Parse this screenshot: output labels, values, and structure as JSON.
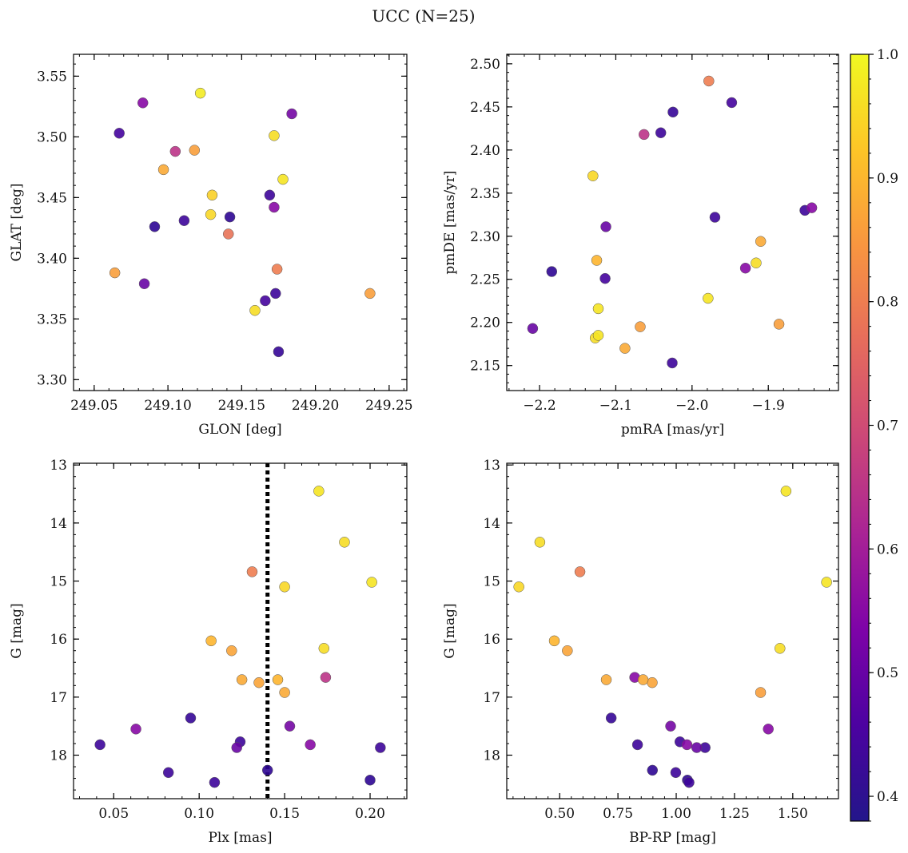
{
  "figure_title": "UCC (N=25)",
  "chart_data": [
    {
      "type": "scatter",
      "id": "sky",
      "xlabel": "GLON [deg]",
      "ylabel": "GLAT [deg]",
      "xlim": [
        249.036,
        249.262
      ],
      "ylim": [
        3.291,
        3.568
      ],
      "xticks": [
        249.05,
        249.1,
        249.15,
        249.2,
        249.25
      ],
      "xtick_labels": [
        "249.05",
        "249.10",
        "249.15",
        "249.20",
        "249.25"
      ],
      "yticks": [
        3.3,
        3.35,
        3.4,
        3.45,
        3.5,
        3.55
      ],
      "ytick_labels": [
        "3.30",
        "3.35",
        "3.40",
        "3.45",
        "3.50",
        "3.55"
      ],
      "x": [
        249.122,
        249.083,
        249.184,
        249.067,
        249.105,
        249.118,
        249.172,
        249.097,
        249.178,
        249.13,
        249.169,
        249.129,
        249.142,
        249.111,
        249.172,
        249.091,
        249.141,
        249.064,
        249.174,
        249.084,
        249.237,
        249.173,
        249.166,
        249.159,
        249.175
      ],
      "y": [
        3.536,
        3.528,
        3.519,
        3.503,
        3.488,
        3.489,
        3.501,
        3.473,
        3.465,
        3.452,
        3.452,
        3.436,
        3.434,
        3.431,
        3.442,
        3.426,
        3.42,
        3.388,
        3.391,
        3.379,
        3.371,
        3.371,
        3.365,
        3.357,
        3.323
      ],
      "c": [
        0.98,
        0.55,
        0.52,
        0.45,
        0.65,
        0.86,
        0.96,
        0.88,
        0.97,
        0.94,
        0.44,
        0.95,
        0.42,
        0.44,
        0.55,
        0.42,
        0.78,
        0.86,
        0.8,
        0.5,
        0.86,
        0.44,
        0.45,
        0.96,
        0.43
      ]
    },
    {
      "type": "scatter",
      "id": "pm",
      "xlabel": "pmRA [mas/yr]",
      "ylabel": "pmDE [mas/yr]",
      "xlim": [
        -2.243,
        -1.808
      ],
      "ylim": [
        2.121,
        2.511
      ],
      "xticks": [
        -2.2,
        -2.1,
        -2.0,
        -1.9
      ],
      "xtick_labels": [
        "−2.2",
        "−2.1",
        "−2.0",
        "−1.9"
      ],
      "yticks": [
        2.15,
        2.2,
        2.25,
        2.3,
        2.35,
        2.4,
        2.45,
        2.5
      ],
      "ytick_labels": [
        "2.15",
        "2.20",
        "2.25",
        "2.30",
        "2.35",
        "2.40",
        "2.45",
        "2.50"
      ],
      "x": [
        -1.978,
        -1.948,
        -2.025,
        -2.041,
        -2.063,
        -2.13,
        -1.843,
        -1.852,
        -1.97,
        -2.113,
        -1.91,
        -2.125,
        -1.916,
        -1.93,
        -2.184,
        -2.114,
        -1.979,
        -2.123,
        -2.209,
        -1.886,
        -2.068,
        -2.123,
        -2.127,
        -2.088,
        -2.026
      ],
      "y": [
        2.48,
        2.455,
        2.444,
        2.42,
        2.418,
        2.37,
        2.333,
        2.33,
        2.322,
        2.311,
        2.294,
        2.272,
        2.269,
        2.263,
        2.259,
        2.251,
        2.228,
        2.216,
        2.193,
        2.198,
        2.195,
        2.185,
        2.182,
        2.17,
        2.153
      ],
      "c": [
        0.8,
        0.45,
        0.43,
        0.44,
        0.65,
        0.95,
        0.55,
        0.44,
        0.44,
        0.5,
        0.88,
        0.9,
        0.96,
        0.55,
        0.42,
        0.45,
        0.97,
        0.97,
        0.5,
        0.86,
        0.86,
        0.97,
        0.96,
        0.88,
        0.44
      ]
    },
    {
      "type": "scatter",
      "id": "cmd_plx",
      "xlabel": "Plx [mas]",
      "ylabel": "G [mag]",
      "xlim": [
        0.0265,
        0.2215
      ],
      "ylim": [
        18.75,
        12.97
      ],
      "y_inverted": true,
      "xticks": [
        0.05,
        0.1,
        0.15,
        0.2
      ],
      "xtick_labels": [
        "0.05",
        "0.10",
        "0.15",
        "0.20"
      ],
      "yticks": [
        13,
        14,
        15,
        16,
        17,
        18
      ],
      "ytick_labels": [
        "13",
        "14",
        "15",
        "16",
        "17",
        "18"
      ],
      "vline_x": 0.14,
      "x": [
        0.17,
        0.185,
        0.131,
        0.201,
        0.15,
        0.107,
        0.119,
        0.173,
        0.174,
        0.125,
        0.135,
        0.146,
        0.15,
        0.095,
        0.063,
        0.153,
        0.042,
        0.124,
        0.122,
        0.165,
        0.206,
        0.14,
        0.082,
        0.2,
        0.109
      ],
      "y": [
        13.45,
        14.33,
        14.84,
        15.02,
        15.1,
        16.03,
        16.2,
        16.16,
        16.66,
        16.7,
        16.75,
        16.7,
        16.92,
        17.36,
        17.55,
        17.5,
        17.82,
        17.77,
        17.87,
        17.82,
        17.87,
        18.26,
        18.3,
        18.43,
        18.47
      ],
      "c": [
        0.97,
        0.96,
        0.8,
        0.97,
        0.95,
        0.9,
        0.87,
        0.96,
        0.65,
        0.88,
        0.87,
        0.9,
        0.88,
        0.43,
        0.55,
        0.52,
        0.44,
        0.44,
        0.5,
        0.55,
        0.44,
        0.42,
        0.44,
        0.42,
        0.44
      ]
    },
    {
      "type": "scatter",
      "id": "cmd_color",
      "xlabel": "BP-RP [mag]",
      "ylabel": "G [mag]",
      "xlim": [
        0.273,
        1.696
      ],
      "ylim": [
        18.75,
        12.97
      ],
      "y_inverted": true,
      "xticks": [
        0.5,
        0.75,
        1.0,
        1.25,
        1.5
      ],
      "xtick_labels": [
        "0.50",
        "0.75",
        "1.00",
        "1.25",
        "1.50"
      ],
      "yticks": [
        13,
        14,
        15,
        16,
        17,
        18
      ],
      "ytick_labels": [
        "13",
        "14",
        "15",
        "16",
        "17",
        "18"
      ],
      "x": [
        1.471,
        0.415,
        0.587,
        1.645,
        0.325,
        0.477,
        0.533,
        1.445,
        0.822,
        0.858,
        0.7,
        0.897,
        1.362,
        0.721,
        1.395,
        0.976,
        0.834,
        1.016,
        1.088,
        1.046,
        1.124,
        0.898,
        0.998,
        1.048,
        1.055
      ],
      "y": [
        13.45,
        14.33,
        14.84,
        15.02,
        15.1,
        16.03,
        16.2,
        16.16,
        16.66,
        16.7,
        16.7,
        16.75,
        16.92,
        17.36,
        17.55,
        17.5,
        17.82,
        17.77,
        17.87,
        17.82,
        17.87,
        18.26,
        18.3,
        18.43,
        18.47
      ],
      "c": [
        0.97,
        0.96,
        0.8,
        0.97,
        0.95,
        0.9,
        0.87,
        0.96,
        0.55,
        0.88,
        0.88,
        0.87,
        0.86,
        0.43,
        0.55,
        0.52,
        0.44,
        0.44,
        0.5,
        0.55,
        0.44,
        0.42,
        0.44,
        0.42,
        0.44
      ]
    }
  ],
  "colorbar": {
    "range": [
      0.38,
      1.0
    ],
    "ticks": [
      0.4,
      0.5,
      0.6,
      0.7,
      0.8,
      0.9,
      1.0
    ],
    "tick_labels": [
      "0.4",
      "0.5",
      "0.6",
      "0.7",
      "0.8",
      "0.9",
      "1.0"
    ],
    "cmap": "plasma"
  },
  "colors": {
    "vline": "#000000",
    "axes": "#000000",
    "marker_edge": "#555555"
  }
}
